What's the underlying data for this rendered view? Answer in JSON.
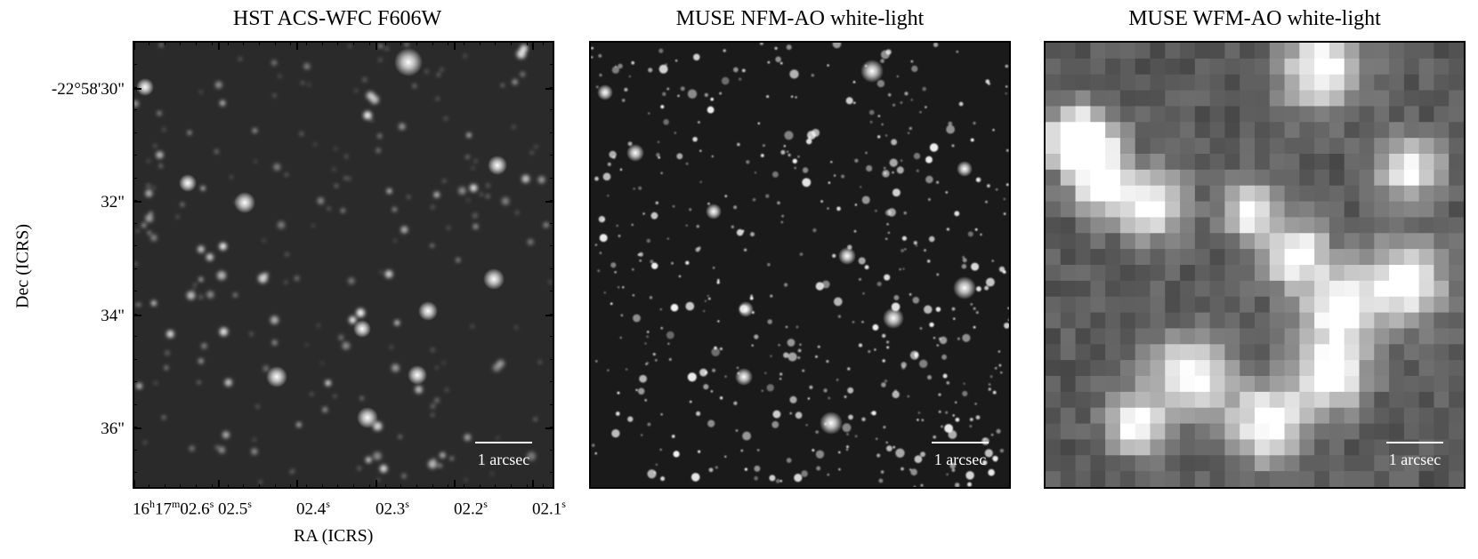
{
  "panels": [
    {
      "title": "HST ACS-WFC F606W",
      "scale_label": "1 arcsec",
      "background": "#2a2a2a",
      "density": 210,
      "blur": 2.2
    },
    {
      "title": "MUSE NFM-AO white-light",
      "scale_label": "1 arcsec",
      "background": "#1a1a1a",
      "density": 520,
      "blur": 0.8
    },
    {
      "title": "MUSE WFM-AO white-light",
      "scale_label": "1 arcsec",
      "background": "#5a5a5a",
      "density": 0,
      "blur": 0
    }
  ],
  "axes": {
    "ylabel": "Dec (ICRS)",
    "xlabel": "RA (ICRS)",
    "yticks": [
      "-22°58'30\"",
      "32\"",
      "34\"",
      "36\""
    ],
    "xticks_first": {
      "h": "16",
      "hs": "h",
      "m": "17",
      "ms": "m",
      "s": "02.6",
      "ss": "s"
    },
    "xticks": [
      {
        "v": "02.5",
        "s": "s"
      },
      {
        "v": "02.4",
        "s": "s"
      },
      {
        "v": "02.3",
        "s": "s"
      },
      {
        "v": "02.2",
        "s": "s"
      },
      {
        "v": "02.1",
        "s": "s"
      }
    ]
  }
}
